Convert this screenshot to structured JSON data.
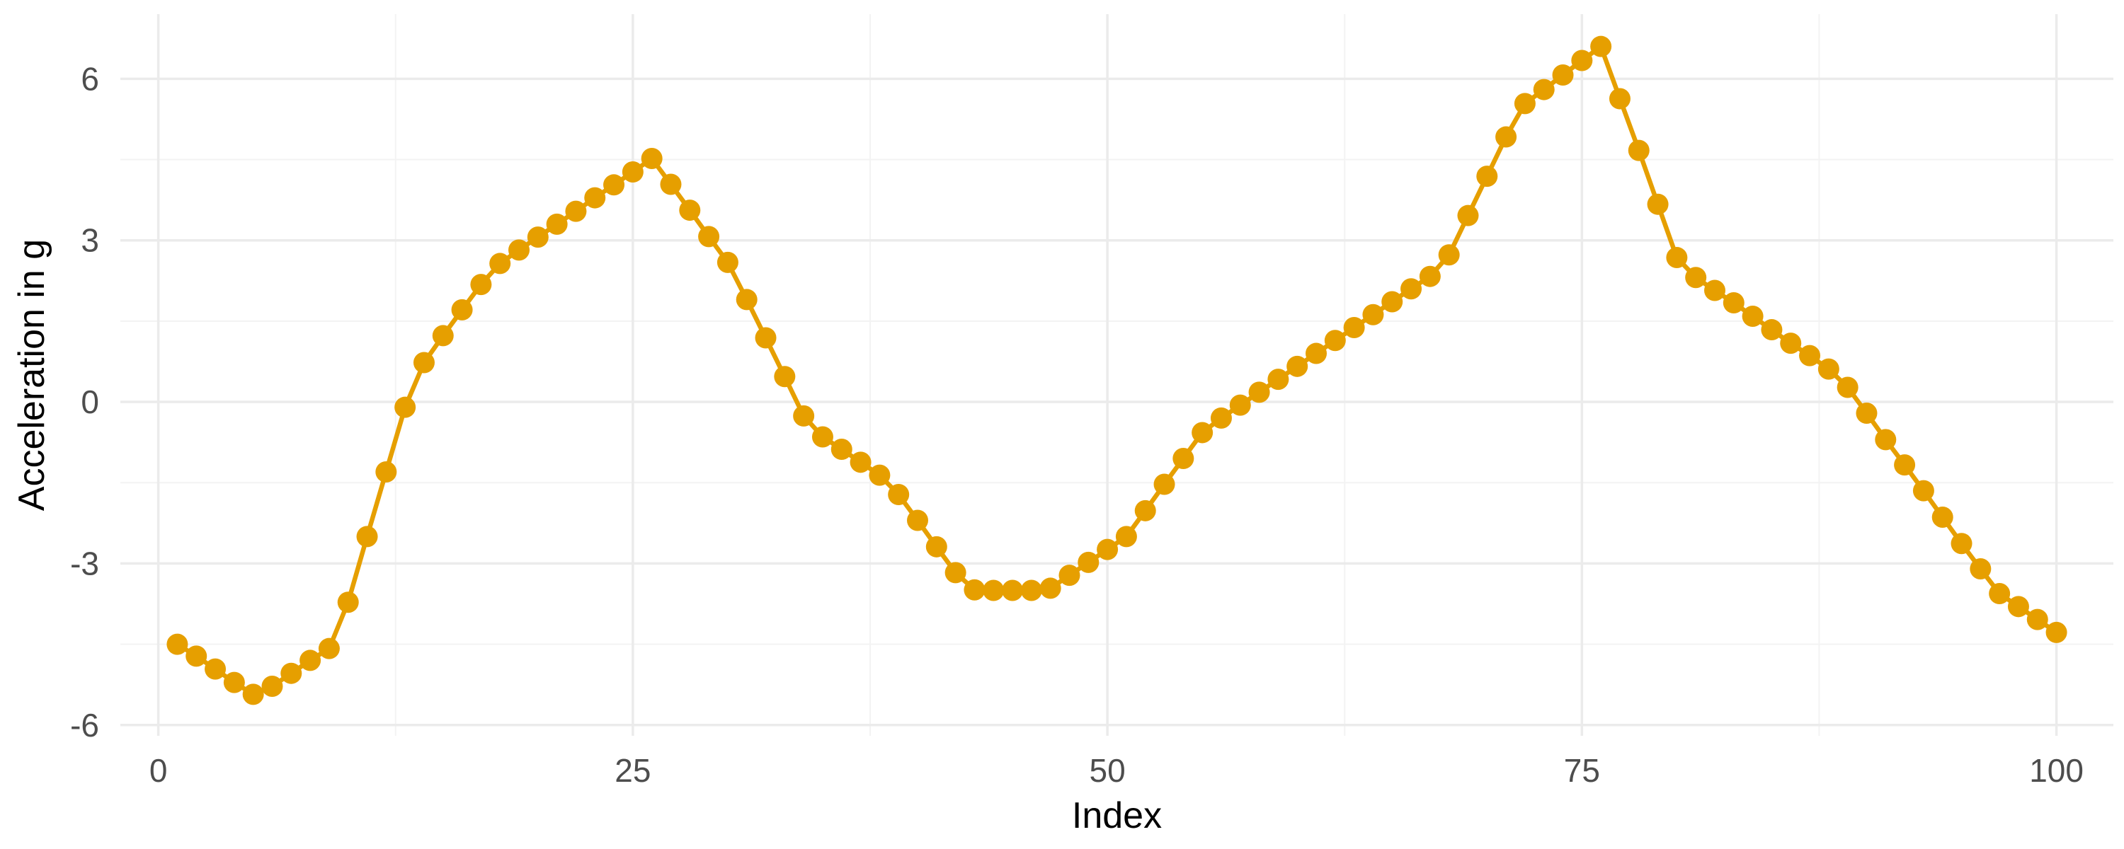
{
  "chart_data": {
    "type": "line",
    "title": "",
    "xlabel": "Index",
    "ylabel": "Acceleration in g",
    "xlim": [
      -2,
      103
    ],
    "ylim": [
      -6.2,
      7.2
    ],
    "x_ticks": [
      0,
      25,
      50,
      75,
      100
    ],
    "y_ticks": [
      -6,
      -3,
      0,
      3,
      6
    ],
    "x_tick_labels": [
      "0",
      "25",
      "50",
      "75",
      "100"
    ],
    "y_tick_labels": [
      "-6",
      "-3",
      "0",
      "3",
      "6"
    ],
    "x_minor_ticks": [
      12.5,
      37.5,
      62.5,
      87.5
    ],
    "y_minor_ticks": [
      -4.5,
      -1.5,
      1.5,
      4.5
    ],
    "grid": true,
    "legend": "none",
    "color": "#E69F00",
    "series": [
      {
        "x": [
          1,
          2,
          3,
          4,
          5,
          6,
          7,
          8,
          9,
          10,
          11,
          12,
          13,
          14,
          15,
          16,
          17,
          18,
          19,
          20,
          21,
          22,
          23,
          24,
          25,
          26,
          27,
          28,
          29,
          30,
          31,
          32,
          33,
          34,
          35,
          36,
          37,
          38,
          39,
          40,
          41,
          42,
          43,
          44,
          45,
          46,
          47,
          48,
          49,
          50,
          51,
          52,
          53,
          54,
          55,
          56,
          57,
          58,
          59,
          60,
          61,
          62,
          63,
          64,
          65,
          66,
          67,
          68,
          69,
          70,
          71,
          72,
          73,
          74,
          75,
          76,
          77,
          78,
          79,
          80,
          81,
          82,
          83,
          84,
          85,
          86,
          87,
          88,
          89,
          90,
          91,
          92,
          93,
          94,
          95,
          96,
          97,
          98,
          99,
          100
        ],
        "y": [
          -4.5,
          -4.72,
          -4.96,
          -5.21,
          -5.43,
          -5.28,
          -5.04,
          -4.8,
          -4.58,
          -3.72,
          -2.5,
          -1.3,
          -0.1,
          0.73,
          1.23,
          1.71,
          2.18,
          2.57,
          2.82,
          3.06,
          3.3,
          3.54,
          3.79,
          4.03,
          4.27,
          4.52,
          4.04,
          3.56,
          3.07,
          2.59,
          1.9,
          1.19,
          0.47,
          -0.26,
          -0.65,
          -0.88,
          -1.12,
          -1.36,
          -1.72,
          -2.2,
          -2.69,
          -3.17,
          -3.49,
          -3.5,
          -3.5,
          -3.5,
          -3.46,
          -3.22,
          -2.98,
          -2.74,
          -2.5,
          -2.02,
          -1.53,
          -1.05,
          -0.57,
          -0.3,
          -0.06,
          0.18,
          0.42,
          0.66,
          0.9,
          1.14,
          1.38,
          1.62,
          1.86,
          2.1,
          2.33,
          2.73,
          3.46,
          4.19,
          4.92,
          5.54,
          5.8,
          6.07,
          6.34,
          6.6,
          5.63,
          4.67,
          3.67,
          2.68,
          2.31,
          2.07,
          1.84,
          1.59,
          1.34,
          1.09,
          0.86,
          0.61,
          0.27,
          -0.21,
          -0.7,
          -1.17,
          -1.65,
          -2.14,
          -2.63,
          -3.1,
          -3.56,
          -3.8,
          -4.04,
          -4.28
        ]
      }
    ]
  }
}
